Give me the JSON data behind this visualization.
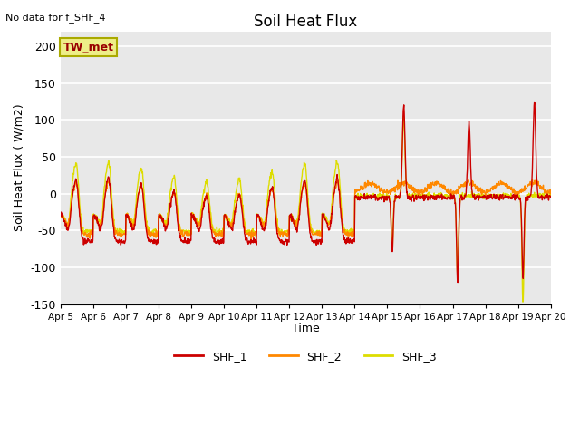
{
  "title": "Soil Heat Flux",
  "subtitle": "No data for f_SHF_4",
  "ylabel": "Soil Heat Flux ( W/m2)",
  "xlabel": "Time",
  "ylim": [
    -150,
    220
  ],
  "yticks": [
    -150,
    -100,
    -50,
    0,
    50,
    100,
    150,
    200
  ],
  "colors": {
    "SHF_1": "#cc0000",
    "SHF_2": "#ff8800",
    "SHF_3": "#dddd00"
  },
  "legend_labels": [
    "SHF_1",
    "SHF_2",
    "SHF_3"
  ],
  "annotation_box": "TW_met",
  "annotation_box_color": "#eeee88",
  "annotation_box_text_color": "#990000",
  "annotation_box_edge_color": "#aaaa00",
  "background_color": "#e8e8e8",
  "grid_color": "#ffffff",
  "x_tick_labels": [
    "Apr 5",
    "Apr 6",
    "Apr 7",
    "Apr 8",
    "Apr 9",
    "Apr 10",
    "Apr 11",
    "Apr 12",
    "Apr 13",
    "Apr 14",
    "Apr 15",
    "Apr 16",
    "Apr 17",
    "Apr 18",
    "Apr 19",
    "Apr 20"
  ],
  "linewidth": 1.0,
  "n_days": 15,
  "pts_per_day": 96
}
